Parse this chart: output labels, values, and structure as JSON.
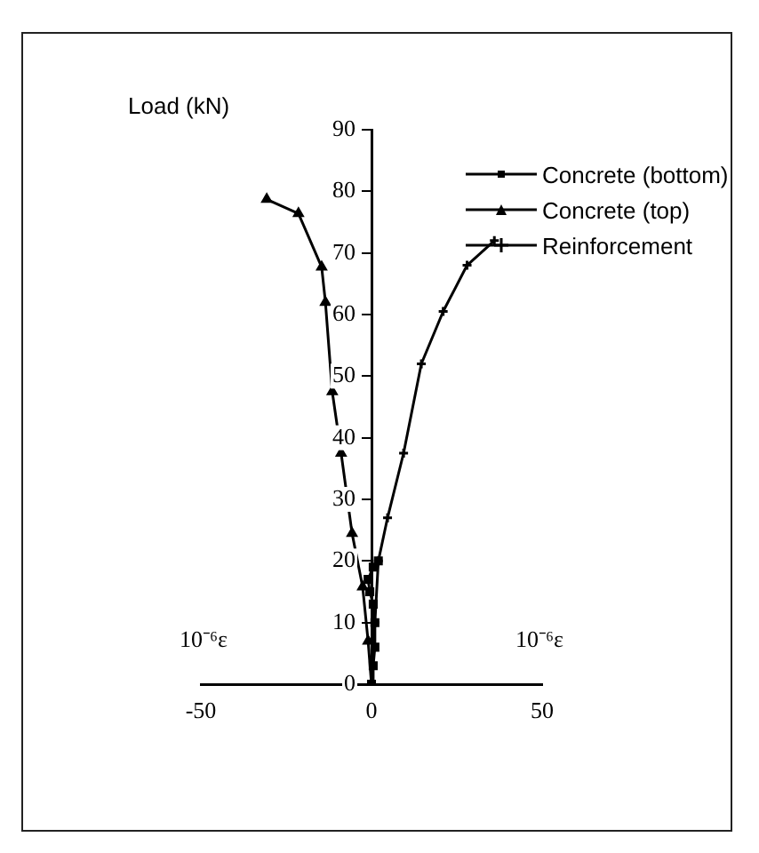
{
  "chart_data": {
    "type": "line",
    "ylabel": "Load (kN)",
    "legend": "top right",
    "grid": false,
    "xlim": [
      -50,
      50
    ],
    "xticks": [
      -50,
      0,
      50
    ],
    "ylim": [
      0,
      90
    ],
    "yticks": [
      0,
      10,
      20,
      30,
      40,
      50,
      60,
      70,
      80,
      90
    ],
    "annotations": [
      "10⁻⁶ε",
      "10⁻⁶ε"
    ],
    "series": [
      {
        "name": "Concrete (bottom)",
        "color": "#000000",
        "marker": "square",
        "x": [
          0,
          0.5,
          1,
          1,
          0.5,
          -0.5,
          -1,
          0.5,
          2
        ],
        "values": [
          0,
          3,
          6,
          10,
          13,
          15,
          17,
          19,
          20
        ]
      },
      {
        "name": "Concrete (top)",
        "color": "#000000",
        "marker": "triangle",
        "x": [
          0,
          -1,
          -2.6,
          -5.7,
          -8.9,
          -11.5,
          -13.5,
          -14.6,
          -21.4,
          -30.7
        ],
        "values": [
          0,
          7,
          15.8,
          24.5,
          37.5,
          47.5,
          62,
          67.7,
          76.4,
          78.7
        ]
      },
      {
        "name": "Reinforcement",
        "color": "#000000",
        "marker": "cross",
        "x": [
          0,
          1,
          2,
          4.7,
          9.4,
          14.6,
          21,
          28,
          36
        ],
        "values": [
          0,
          10,
          20,
          27,
          37.5,
          52,
          60.5,
          68,
          72
        ]
      }
    ]
  }
}
